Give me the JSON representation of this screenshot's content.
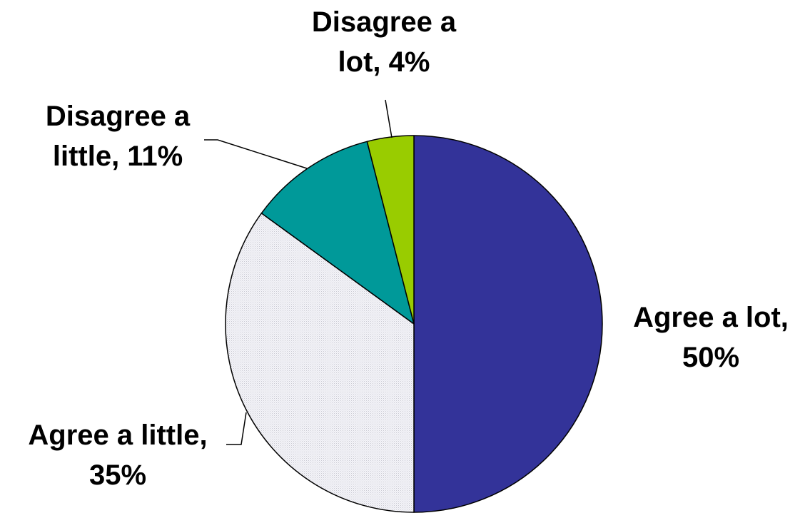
{
  "chart_data": {
    "type": "pie",
    "start_angle_deg": 0,
    "direction": "clockwise",
    "slices": [
      {
        "label_lines": [
          "Agree a lot,",
          "50%"
        ],
        "category": "Agree a lot",
        "value": 50,
        "color": "#333399",
        "pattern": "solid"
      },
      {
        "label_lines": [
          "Agree a little,",
          "35%"
        ],
        "category": "Agree a little",
        "value": 35,
        "color": "#f2f2f6",
        "pattern": "fine-dots"
      },
      {
        "label_lines": [
          "Disagree a",
          "little, 11%"
        ],
        "category": "Disagree a little",
        "value": 11,
        "color": "#009999",
        "pattern": "solid"
      },
      {
        "label_lines": [
          "Disagree a",
          "lot, 4%"
        ],
        "category": "Disagree a lot",
        "value": 4,
        "color": "#99cc00",
        "pattern": "solid"
      }
    ]
  }
}
